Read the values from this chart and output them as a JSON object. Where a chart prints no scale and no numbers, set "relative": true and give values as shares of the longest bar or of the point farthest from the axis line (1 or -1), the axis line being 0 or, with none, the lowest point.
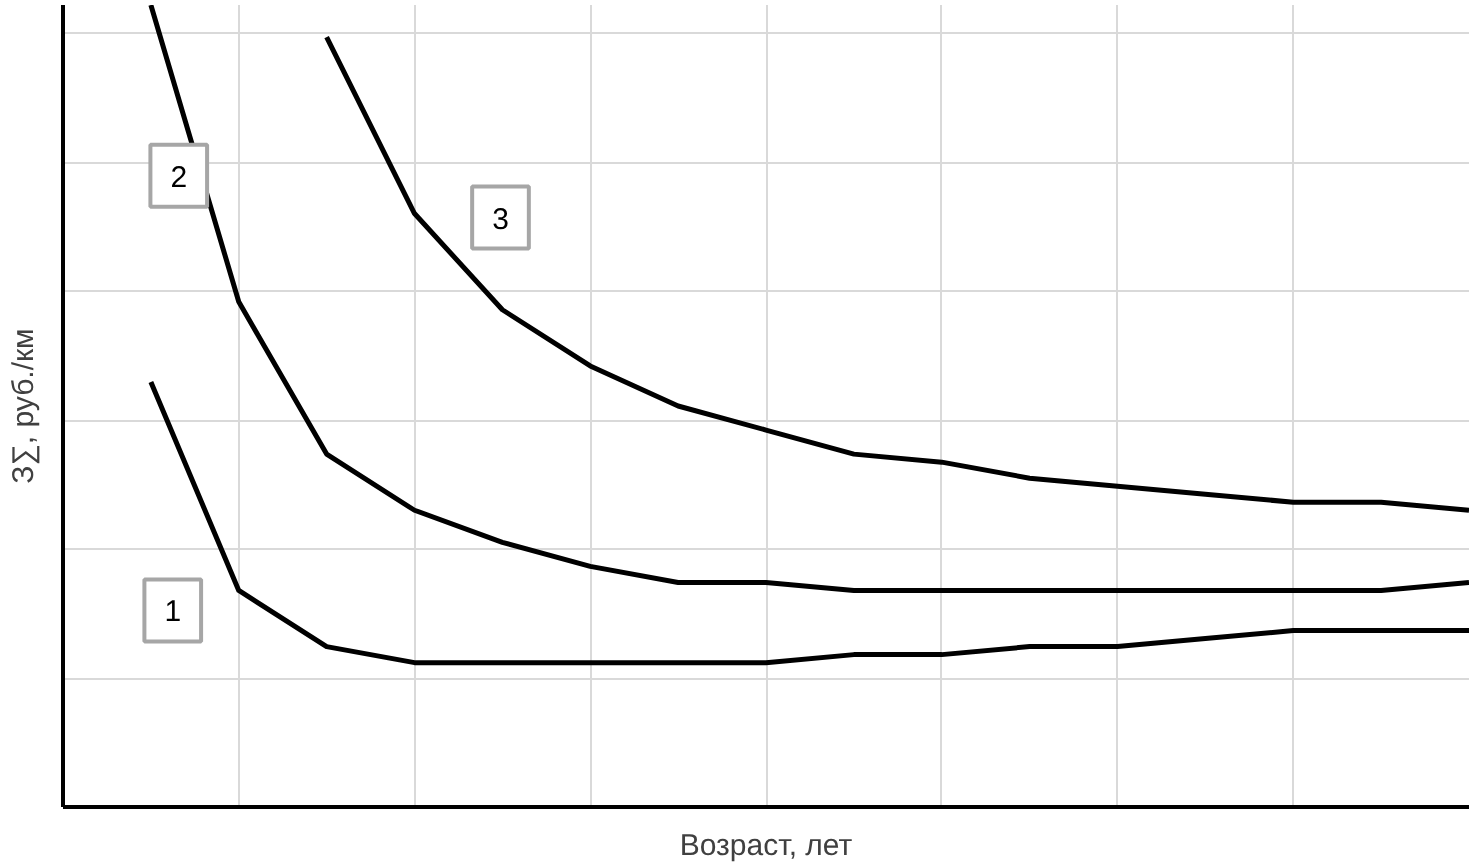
{
  "chart_data": {
    "type": "line",
    "relative": true,
    "xlabel": "Возраст, лет",
    "ylabel": "З∑, руб./км",
    "grid": true,
    "marker": "none",
    "line_style": "solid",
    "categories": [
      null,
      null,
      null,
      null,
      null,
      null,
      null,
      null,
      null,
      null,
      null,
      null,
      null,
      null,
      null,
      null,
      null
    ],
    "series": [
      {
        "name": "1",
        "color": "#000000",
        "values": [
          null,
          0.53,
          0.27,
          0.2,
          0.18,
          0.18,
          0.18,
          0.18,
          0.18,
          0.19,
          0.19,
          0.2,
          0.2,
          0.21,
          0.22,
          0.22,
          0.22
        ]
      },
      {
        "name": "2",
        "color": "#000000",
        "values": [
          null,
          1.0,
          0.63,
          0.44,
          0.37,
          0.33,
          0.3,
          0.28,
          0.28,
          0.27,
          0.27,
          0.27,
          0.27,
          0.27,
          0.27,
          0.27,
          0.28
        ]
      },
      {
        "name": "3",
        "color": "#000000",
        "values": [
          null,
          null,
          null,
          0.96,
          0.74,
          0.62,
          0.55,
          0.5,
          0.47,
          0.44,
          0.43,
          0.41,
          0.4,
          0.39,
          0.38,
          0.38,
          0.37
        ]
      }
    ]
  }
}
